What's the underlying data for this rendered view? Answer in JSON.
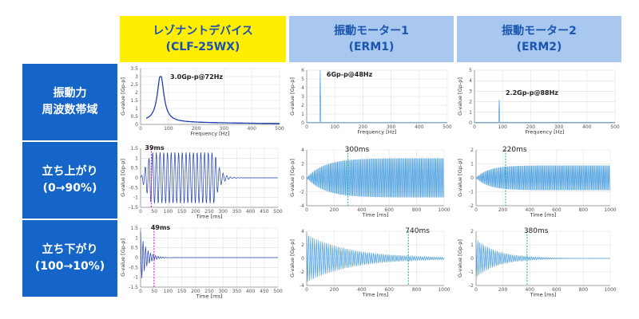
{
  "columns": [
    {
      "line1": "レゾナントデバイス",
      "line2": "(CLF-25WX)",
      "bg": "#ffee00",
      "fg": "#1a4fb8"
    },
    {
      "line1": "振動モーター1",
      "line2": "(ERM1)",
      "bg": "#a9c8ef",
      "fg": "#1a55b0"
    },
    {
      "line1": "振動モーター2",
      "line2": "(ERM2)",
      "bg": "#a9c8ef",
      "fg": "#1a55b0"
    }
  ],
  "rows": [
    {
      "line1": "振動力",
      "line2": "周波数帯域"
    },
    {
      "line1": "立ち上がり",
      "line2": "(0→90%)"
    },
    {
      "line1": "立ち下がり",
      "line2": "(100→10%)"
    }
  ],
  "colors": {
    "row_label_bg": "#1565c8",
    "row_label_fg": "#ffffff",
    "trace_dark": "#1f3fb0",
    "trace_light": "#4a9ee0",
    "marker_magenta": "#d020d0",
    "marker_teal": "#20b8a0"
  },
  "chart_data": [
    {
      "id": "c11",
      "type": "line",
      "shape": "resonance",
      "title": "",
      "xlabel": "Frequency [Hz]",
      "ylabel": "G-value [Gp-p]",
      "xlim": [
        0,
        500
      ],
      "ylim": [
        0,
        3.5
      ],
      "xticks": [
        0,
        100,
        200,
        300,
        400,
        500
      ],
      "yticks": [
        0,
        0.5,
        1,
        1.5,
        2,
        2.5,
        3,
        3.5
      ],
      "peak_x": 72,
      "peak_y": 3.0,
      "annotation": "3.0Gp-p@72Hz",
      "grid": true
    },
    {
      "id": "c12",
      "type": "line",
      "shape": "spike",
      "title": "",
      "xlabel": "Frequency [Hz]",
      "ylabel": "G-value [Gp-p]",
      "xlim": [
        0,
        500
      ],
      "ylim": [
        0,
        6
      ],
      "xticks": [
        0,
        100,
        200,
        300,
        400,
        500
      ],
      "yticks": [
        0,
        1,
        2,
        3,
        4,
        5,
        6
      ],
      "peak_x": 48,
      "peak_y": 6,
      "annotation": "6Gp-p@48Hz",
      "grid": true
    },
    {
      "id": "c13",
      "type": "line",
      "shape": "spike",
      "title": "",
      "xlabel": "Frequency [Hz]",
      "ylabel": "G-value [Gp-p]",
      "xlim": [
        0,
        500
      ],
      "ylim": [
        0,
        5
      ],
      "xticks": [
        0,
        100,
        200,
        300,
        400,
        500
      ],
      "yticks": [
        0,
        1,
        2,
        3,
        4,
        5
      ],
      "peak_x": 88,
      "peak_y": 2.2,
      "annotation": "2.2Gp-p@88Hz",
      "grid": true
    },
    {
      "id": "c21",
      "type": "line",
      "shape": "rise-burst",
      "title": "",
      "xlabel": "Time [ms]",
      "ylabel": "G-value [Gp-p]",
      "xlim": [
        0,
        500
      ],
      "ylim": [
        -1.5,
        1.5
      ],
      "xticks": [
        0,
        50,
        100,
        150,
        200,
        250,
        300,
        350,
        400,
        450,
        500
      ],
      "yticks": [
        -1.5,
        -1,
        -0.5,
        0,
        0.5,
        1,
        1.5
      ],
      "marker_x": 39,
      "annotation": "39ms",
      "amplitude": 1.3,
      "grid": true
    },
    {
      "id": "c22",
      "type": "line",
      "shape": "rise-sustain",
      "title": "",
      "xlabel": "Time [ms]",
      "ylabel": "G-value [Gp-p]",
      "xlim": [
        0,
        1000
      ],
      "ylim": [
        -4,
        4
      ],
      "xticks": [
        0,
        200,
        400,
        600,
        800,
        1000
      ],
      "yticks": [
        -4,
        -2,
        0,
        2,
        4
      ],
      "marker_x": 300,
      "annotation": "300ms",
      "amplitude": 3.2,
      "grid": true
    },
    {
      "id": "c23",
      "type": "line",
      "shape": "rise-sustain",
      "title": "",
      "xlabel": "Time [ms]",
      "ylabel": "G-value [Gp-p]",
      "xlim": [
        0,
        1000
      ],
      "ylim": [
        -2,
        2
      ],
      "xticks": [
        0,
        200,
        400,
        600,
        800,
        1000
      ],
      "yticks": [
        -2,
        -1,
        0,
        1,
        2
      ],
      "marker_x": 220,
      "annotation": "220ms",
      "amplitude": 1.0,
      "grid": true
    },
    {
      "id": "c31",
      "type": "line",
      "shape": "fall-decay",
      "title": "",
      "xlabel": "Time [ms]",
      "ylabel": "G-value [Gp-p]",
      "xlim": [
        0,
        500
      ],
      "ylim": [
        -1.5,
        1.5
      ],
      "xticks": [
        0,
        50,
        100,
        150,
        200,
        250,
        300,
        350,
        400,
        450,
        500
      ],
      "yticks": [
        -1.5,
        -1,
        -0.5,
        0,
        0.5,
        1,
        1.5
      ],
      "marker_x": 49,
      "annotation": "49ms",
      "amplitude": 1.3,
      "grid": true
    },
    {
      "id": "c32",
      "type": "line",
      "shape": "fall-decay",
      "title": "",
      "xlabel": "Time [ms]",
      "ylabel": "G-value [Gp-p]",
      "xlim": [
        0,
        1000
      ],
      "ylim": [
        -4,
        4
      ],
      "xticks": [
        0,
        200,
        400,
        600,
        800,
        1000
      ],
      "yticks": [
        -4,
        -2,
        0,
        2,
        4
      ],
      "marker_x": 740,
      "annotation": "740ms",
      "amplitude": 3.5,
      "grid": true
    },
    {
      "id": "c33",
      "type": "line",
      "shape": "fall-decay",
      "title": "",
      "xlabel": "Time [ms]",
      "ylabel": "G-value [Gp-p]",
      "xlim": [
        0,
        1000
      ],
      "ylim": [
        -2,
        2
      ],
      "xticks": [
        0,
        200,
        400,
        600,
        800,
        1000
      ],
      "yticks": [
        -2,
        -1,
        0,
        1,
        2
      ],
      "marker_x": 380,
      "annotation": "380ms",
      "amplitude": 1.4,
      "grid": true
    }
  ]
}
